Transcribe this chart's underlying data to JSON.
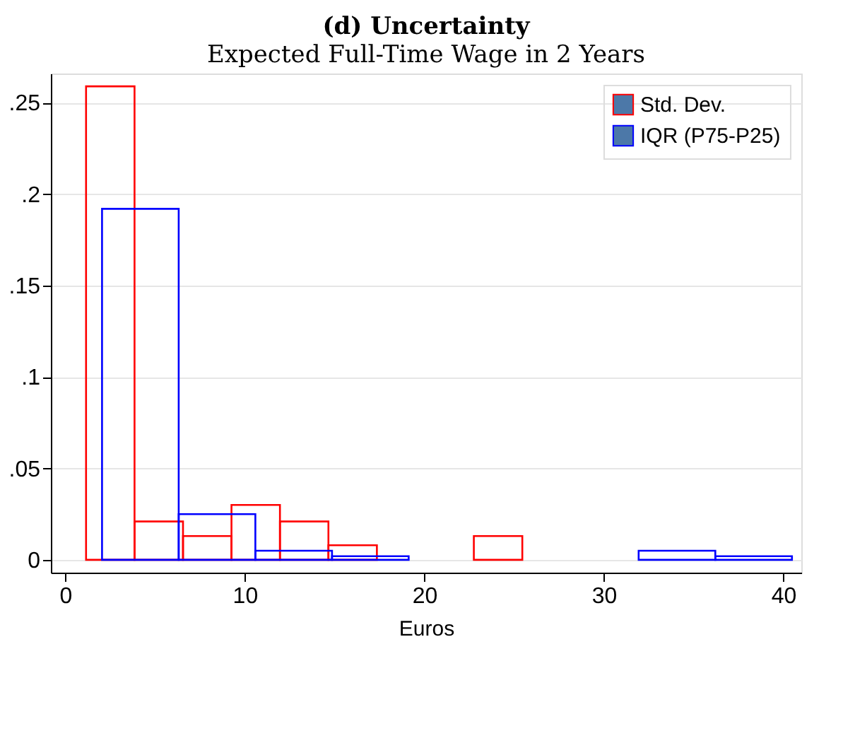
{
  "chart_data": {
    "type": "histogram",
    "title": "(d) Uncertainty",
    "subtitle": "Expected Full-Time Wage in 2 Years",
    "xlabel": "Euros",
    "bins": [
      1.16,
      3.86,
      6.56,
      9.26,
      11.96,
      14.66,
      17.36,
      20.06,
      22.76,
      25.46
    ],
    "series": [
      {
        "name": "Std. Dev.",
        "color": "#ff0000",
        "values": [
          0.259,
          0.021,
          0.013,
          0.03,
          0.021,
          0.008,
          0,
          0,
          0.013
        ]
      },
      {
        "name": "IQR (P75-P25)",
        "color": "#0000ff",
        "bins": [
          2.05,
          6.32,
          10.59,
          14.86,
          19.13,
          23.4,
          27.67,
          31.94,
          36.21,
          40.48
        ],
        "values": [
          0.192,
          0.025,
          0.005,
          0.002,
          0,
          0,
          0,
          0.005,
          0.002
        ]
      }
    ],
    "xlim": [
      -0.8,
      41
    ],
    "xticks": [
      0,
      10,
      20,
      30,
      40
    ],
    "ylim": [
      -0.007,
      0.266
    ],
    "yticks": [
      0,
      {
        "value": 0.05,
        "label": ".05"
      },
      {
        "value": 0.1,
        "label": ".1"
      },
      {
        "value": 0.15,
        "label": ".15"
      },
      {
        "value": 0.2,
        "label": ".2"
      },
      {
        "value": 0.25,
        "label": ".25"
      }
    ],
    "grid": "y",
    "legend": "top right"
  }
}
